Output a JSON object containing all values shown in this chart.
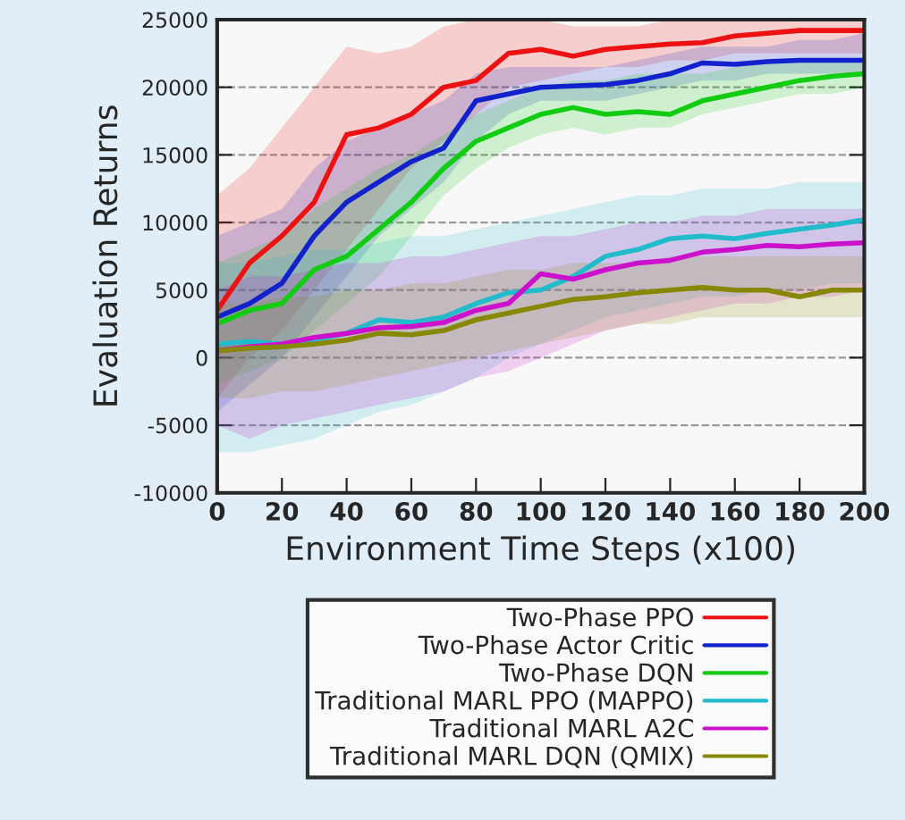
{
  "chart_data": {
    "type": "line",
    "xlabel": "Environment Time Steps (x100)",
    "ylabel": "Evaluation Returns",
    "x": [
      0,
      10,
      20,
      30,
      40,
      50,
      60,
      70,
      80,
      90,
      100,
      110,
      120,
      130,
      140,
      150,
      160,
      170,
      180,
      190,
      200
    ],
    "xlim": [
      0,
      200
    ],
    "xticks": [
      0,
      20,
      40,
      60,
      80,
      100,
      120,
      140,
      160,
      180,
      200
    ],
    "ylim": [
      -10000,
      25000
    ],
    "yticks": [
      -10000,
      -5000,
      0,
      5000,
      10000,
      15000,
      20000,
      25000
    ],
    "grid": "y",
    "legend": "bottom",
    "line_style": "solid",
    "marker": "none",
    "series": [
      {
        "name": "Two-Phase PPO",
        "color": "#ee1111",
        "values": [
          3500,
          7000,
          9000,
          11500,
          16500,
          17000,
          18000,
          20000,
          20500,
          22500,
          22800,
          22300,
          22800,
          23000,
          23200,
          23300,
          23800,
          24000,
          24200,
          24200,
          24200
        ],
        "lower": [
          -3000,
          0,
          2000,
          5000,
          8000,
          11000,
          14000,
          16000,
          18000,
          20000,
          20500,
          21000,
          21500,
          21500,
          22000,
          22000,
          22500,
          22500,
          22500,
          22500,
          22500
        ],
        "upper": [
          12000,
          14000,
          17000,
          20000,
          23000,
          22500,
          23000,
          24500,
          25000,
          25000,
          25000,
          24500,
          24500,
          24500,
          25000,
          25000,
          25000,
          25000,
          25000,
          25000,
          25000
        ]
      },
      {
        "name": "Two-Phase Actor Critic",
        "color": "#1122cc",
        "values": [
          3000,
          4000,
          5500,
          9000,
          11500,
          13000,
          14500,
          15500,
          19000,
          19500,
          20000,
          20100,
          20200,
          20500,
          21000,
          21800,
          21700,
          21900,
          22000,
          22000,
          22000
        ],
        "lower": [
          -4000,
          -2000,
          0,
          3000,
          6000,
          9000,
          11000,
          13000,
          16000,
          18000,
          19000,
          19000,
          19000,
          19500,
          20000,
          20500,
          20500,
          21000,
          21000,
          21000,
          21000
        ],
        "upper": [
          9000,
          10000,
          11000,
          14000,
          16000,
          17000,
          18000,
          19000,
          21000,
          21500,
          21500,
          21500,
          21500,
          22000,
          22500,
          23000,
          23000,
          23000,
          23500,
          23500,
          24000
        ]
      },
      {
        "name": "Two-Phase DQN",
        "color": "#11cc11",
        "values": [
          2500,
          3500,
          4000,
          6500,
          7500,
          9500,
          11500,
          14000,
          16000,
          17000,
          18000,
          18500,
          18000,
          18200,
          18000,
          19000,
          19500,
          20000,
          20500,
          20800,
          21000
        ],
        "lower": [
          -2000,
          -1000,
          0,
          2000,
          4000,
          6000,
          9000,
          12000,
          14000,
          15500,
          16500,
          17000,
          16500,
          17000,
          17000,
          18000,
          18500,
          19000,
          19500,
          19500,
          20000
        ],
        "upper": [
          7000,
          8000,
          9000,
          11000,
          12500,
          14000,
          15000,
          16500,
          18000,
          19000,
          20000,
          20500,
          20500,
          21000,
          21000,
          21000,
          21500,
          22000,
          22000,
          22000,
          22000
        ]
      },
      {
        "name": "Traditional MARL PPO (MAPPO)",
        "color": "#22bbcc",
        "values": [
          1000,
          1200,
          1000,
          1300,
          1800,
          2800,
          2600,
          3000,
          4000,
          4800,
          5000,
          6000,
          7500,
          8000,
          8800,
          9000,
          8800,
          9200,
          9500,
          9800,
          10200
        ],
        "lower": [
          -7000,
          -7000,
          -6500,
          -6000,
          -5000,
          -4000,
          -3500,
          -2500,
          -1500,
          0,
          1000,
          2000,
          3000,
          3500,
          4000,
          4500,
          4500,
          5000,
          5000,
          5500,
          5500
        ],
        "upper": [
          7000,
          7000,
          7500,
          8000,
          8000,
          8500,
          9000,
          9000,
          9500,
          10000,
          10500,
          11000,
          11500,
          12000,
          12000,
          12500,
          12500,
          12500,
          13000,
          13000,
          13000
        ]
      },
      {
        "name": "Traditional MARL A2C",
        "color": "#cc11cc",
        "values": [
          500,
          800,
          1000,
          1500,
          1800,
          2200,
          2300,
          2600,
          3500,
          4000,
          6200,
          5800,
          6500,
          7000,
          7200,
          7800,
          8000,
          8300,
          8200,
          8400,
          8500
        ],
        "lower": [
          -5000,
          -6000,
          -5000,
          -4500,
          -4000,
          -3500,
          -3000,
          -2500,
          -1500,
          -1000,
          0,
          1000,
          2000,
          2500,
          3000,
          3500,
          4000,
          4000,
          4500,
          4500,
          5000
        ],
        "upper": [
          5000,
          6000,
          6000,
          6500,
          7000,
          7000,
          7500,
          7500,
          8000,
          8500,
          9000,
          9000,
          9500,
          10000,
          10000,
          10500,
          10500,
          11000,
          11000,
          11000,
          11000
        ]
      },
      {
        "name": "Traditional MARL DQN (QMIX)",
        "color": "#888800",
        "values": [
          500,
          700,
          800,
          1000,
          1300,
          1800,
          1700,
          2000,
          2800,
          3300,
          3800,
          4300,
          4500,
          4800,
          5000,
          5200,
          5000,
          5000,
          4500,
          5000,
          5000
        ],
        "lower": [
          -3000,
          -3000,
          -2500,
          -2500,
          -2000,
          -1500,
          -1000,
          -500,
          0,
          500,
          1000,
          1500,
          2000,
          2500,
          2500,
          3000,
          3000,
          3000,
          3000,
          3000,
          3000
        ],
        "upper": [
          4000,
          4000,
          4500,
          4500,
          5000,
          5000,
          5500,
          5500,
          6000,
          6500,
          6500,
          7000,
          7000,
          7000,
          7500,
          7500,
          7500,
          7500,
          7500,
          7500,
          7500
        ]
      }
    ]
  }
}
